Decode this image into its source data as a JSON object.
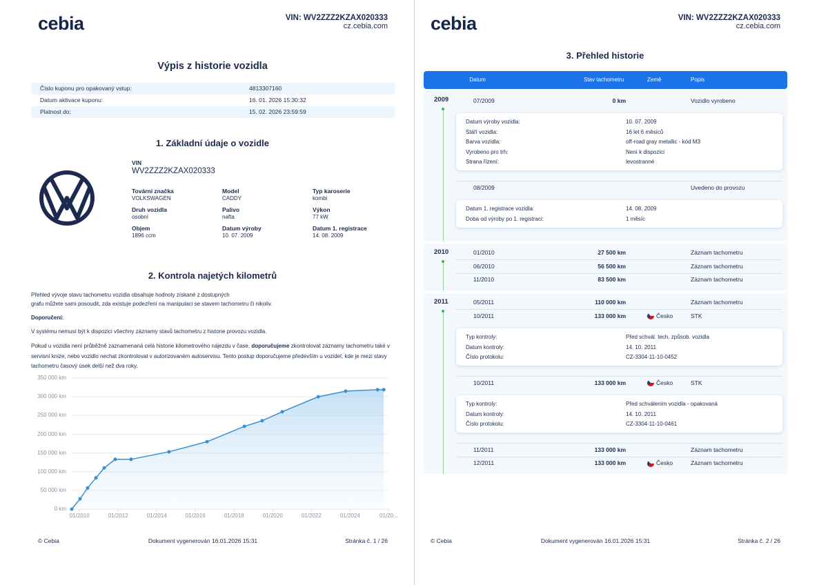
{
  "header": {
    "logo": "cebia",
    "vin": "VIN: WV2ZZZ2KZAX020333",
    "site": "cz.cebia.com"
  },
  "page1": {
    "title": "Výpis z historie vozidla",
    "coupon": [
      {
        "label": "Číslo kuponu pro opakovaný vstup:",
        "value": "4813307160"
      },
      {
        "label": "Datum aktivace kuponu:",
        "value": "16. 01. 2026 15:30:32"
      },
      {
        "label": "Platnost do:",
        "value": "15. 02. 2026 23:59:59"
      }
    ],
    "section1": {
      "title": "1. Základní údaje o vozidle",
      "vin_label": "VIN",
      "vin_value": "WV2ZZZ2KZAX020333",
      "fields": [
        {
          "label": "Tovární značka",
          "value": "VOLKSWAGEN"
        },
        {
          "label": "Model",
          "value": "CADDY"
        },
        {
          "label": "Typ karoserie",
          "value": "kombi"
        },
        {
          "label": "Druh vozidla",
          "value": "osobní"
        },
        {
          "label": "Palivo",
          "value": "nafta"
        },
        {
          "label": "Výkon",
          "value": "77 kW"
        },
        {
          "label": "Objem",
          "value": "1896 ccm"
        },
        {
          "label": "Datum výroby",
          "value": "10. 07. 2009"
        },
        {
          "label": "Datum 1. registrace",
          "value": "14. 08. 2009"
        }
      ]
    },
    "section2": {
      "title": "2. Kontrola najetých kilometrů",
      "intro": [
        "Přehled vývoje stavu tachometru vozidla obsahuje hodnoty získané z dostupných",
        "grafu můžete sami posoudit, zda existuje podezření na manipulaci se stavem tachometru či nikoliv."
      ],
      "recommend_label": "Doporučení:",
      "note": "V systému nemusí být k dispozici všechny záznamy stavů tachometru z historie provozu vozidla.",
      "advice": {
        "before": "Pokud u vozidla není průběžně zaznamenaná celá historie kilometrového nájezdu v čase, ",
        "bold": "doporučujeme",
        "after": " zkontrolovat záznamy tachometru také v servisní knize, nebo vozidlo nechat zkontrolovat v autorizovaném autoservisu. Tento postup doporučujeme především u vozidel, kde je mezi stavy tachometru časový úsek delší než dva roky."
      }
    },
    "footer": {
      "left": "© Cebia",
      "center": "Dokument vygenerován 16.01.2026 15:31",
      "right": "Stránka č. 1 / 26"
    }
  },
  "chart_data": {
    "type": "area",
    "color": "#3a8fd0",
    "grid": true,
    "x": [
      2009.6,
      2010.03,
      2010.42,
      2010.85,
      2011.28,
      2011.85,
      2012.67,
      2014.63,
      2016.6,
      2018.53,
      2019.45,
      2020.49,
      2022.35,
      2023.77,
      2025.42,
      2025.74
    ],
    "values": [
      0,
      27500,
      56500,
      83500,
      110000,
      133000,
      133000,
      153000,
      180000,
      221000,
      236000,
      260000,
      300000,
      315000,
      319000,
      319000
    ],
    "xlim": [
      2009.6,
      2025.95
    ],
    "xticks": [
      {
        "value": 2010,
        "label": "01/2010"
      },
      {
        "value": 2012,
        "label": "01/2012"
      },
      {
        "value": 2014,
        "label": "01/2014"
      },
      {
        "value": 2016,
        "label": "01/2016"
      },
      {
        "value": 2018,
        "label": "01/2018"
      },
      {
        "value": 2020,
        "label": "01/2020"
      },
      {
        "value": 2022,
        "label": "01/2022"
      },
      {
        "value": 2024,
        "label": "01/2024"
      },
      {
        "value": 2026,
        "label": "01/20..."
      }
    ],
    "ylim": [
      0,
      350000
    ],
    "yticks": [
      {
        "value": 0,
        "label": "0 km"
      },
      {
        "value": 50000,
        "label": "50 000 km"
      },
      {
        "value": 100000,
        "label": "100 000 km"
      },
      {
        "value": 150000,
        "label": "150 000 km"
      },
      {
        "value": 200000,
        "label": "200 000 km"
      },
      {
        "value": 250000,
        "label": "250 000 km"
      },
      {
        "value": 300000,
        "label": "300 000 km"
      },
      {
        "value": 350000,
        "label": "350 000 km"
      }
    ]
  },
  "page2": {
    "title": "3. Přehled historie",
    "columns": [
      "Datum",
      "Stav tachometru",
      "Země",
      "Popis"
    ],
    "groups": [
      {
        "year": "2009",
        "rows": [
          {
            "date": "07/2009",
            "km": "0 km",
            "description": "Vozidlo vyrobeno",
            "details": [
              {
                "label": "Datum výroby vozidla:",
                "value": "10. 07. 2009"
              },
              {
                "label": "Stáří vozidla:",
                "value": "16 let 6 měsíců"
              },
              {
                "label": "Barva vozidla:",
                "value": "off-road gray metallic - kód M3"
              },
              {
                "label": "Vyrobeno pro trh:",
                "value": "Není k dispozici"
              },
              {
                "label": "Strana řízení:",
                "value": "levostranné"
              }
            ]
          },
          {
            "date": "08/2009",
            "description": "Uvedeno do provozu",
            "details": [
              {
                "label": "Datum 1. registrace vozidla:",
                "value": "14. 08. 2009"
              },
              {
                "label": "Doba od výroby po 1. registraci:",
                "value": "1 měsíc"
              }
            ]
          }
        ]
      },
      {
        "year": "2010",
        "rows": [
          {
            "date": "01/2010",
            "km": "27 500 km",
            "description": "Záznam tachometru"
          },
          {
            "date": "06/2010",
            "km": "56 500 km",
            "description": "Záznam tachometru"
          },
          {
            "date": "11/2010",
            "km": "83 500 km",
            "description": "Záznam tachometru"
          }
        ]
      },
      {
        "year": "2011",
        "rows": [
          {
            "date": "05/2011",
            "km": "110 000 km",
            "description": "Záznam tachometru"
          },
          {
            "date": "10/2011",
            "km": "133 000 km",
            "country": "Česko",
            "description": "STK",
            "details": [
              {
                "label": "Typ kontroly:",
                "value": "Před schvál. tech. způsob. vozidla"
              },
              {
                "label": "Datum kontroly:",
                "value": "14. 10. 2011"
              },
              {
                "label": "Číslo protokolu:",
                "value": "CZ-3304-11-10-0452"
              }
            ]
          },
          {
            "date": "10/2011",
            "km": "133 000 km",
            "country": "Česko",
            "description": "STK",
            "details": [
              {
                "label": "Typ kontroly:",
                "value": "Před schválením vozidla - opakovaná"
              },
              {
                "label": "Datum kontroly:",
                "value": "14. 10. 2011"
              },
              {
                "label": "Číslo protokolu:",
                "value": "CZ-3304-11-10-0461"
              }
            ]
          },
          {
            "date": "11/2011",
            "km": "133 000 km",
            "description": "Záznam tachometru"
          },
          {
            "date": "12/2011",
            "km": "133 000 km",
            "country": "Česko",
            "description": "Záznam tachometru"
          }
        ]
      }
    ]
  },
  "footer2": {
    "right": "Stránka č. 2 / 26"
  }
}
